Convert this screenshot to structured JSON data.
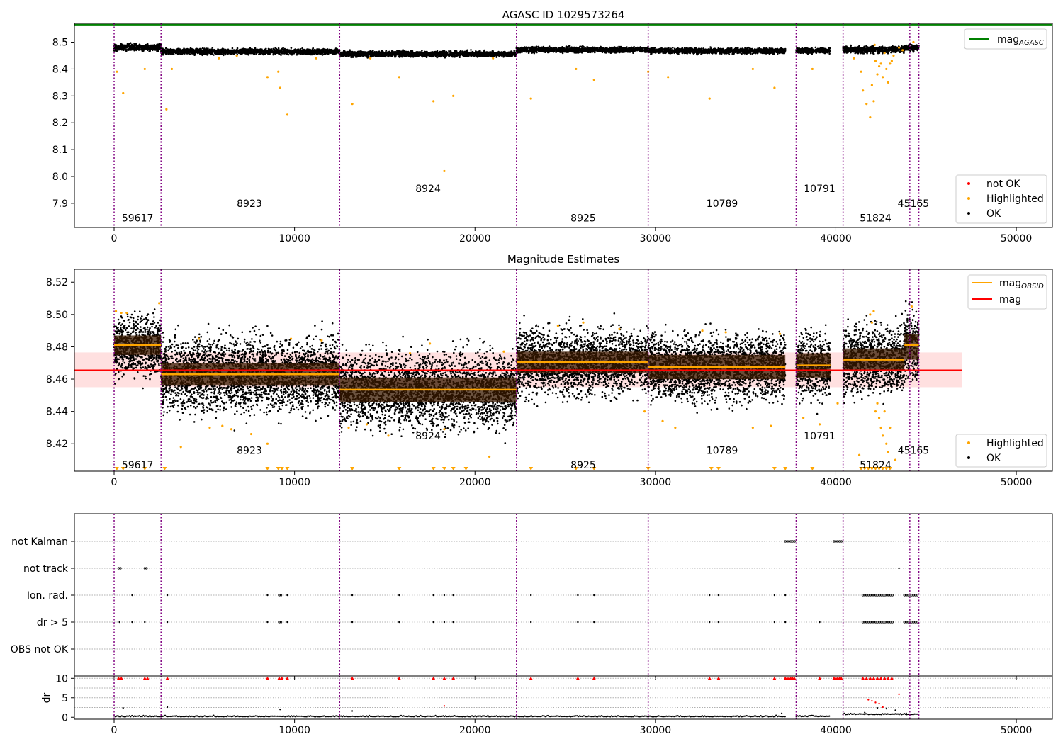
{
  "colors": {
    "ok": "#000000",
    "highlighted": "#ffa500",
    "not_ok": "#ff0000",
    "agasc_line": "#008000",
    "mag_line": "#ff0000",
    "mag_band": "#ffcccc",
    "obsid_line": "#ffa500",
    "obs_boundary": "#800080",
    "band_fill": "#3a1a00"
  },
  "chart_data": [
    {
      "type": "scatter",
      "title": "AGASC ID 1029573264",
      "xlim": [
        -2200,
        52000
      ],
      "ylim": [
        7.81,
        8.57
      ],
      "x_ticks": [
        0,
        10000,
        20000,
        30000,
        40000,
        50000
      ],
      "y_ticks": [
        7.9,
        8.0,
        8.1,
        8.2,
        8.3,
        8.4,
        8.5
      ],
      "mag_agasc": 8.565,
      "legend_top": [
        {
          "label_main": "mag",
          "label_sub": "AGASC",
          "color": "#008000"
        }
      ],
      "legend_bottom": [
        {
          "label": "not OK",
          "color": "#ff0000"
        },
        {
          "label": "Highlighted",
          "color": "#ffa500"
        },
        {
          "label": "OK",
          "color": "#000000"
        }
      ],
      "obs_boundaries": [
        0,
        2600,
        12500,
        22300,
        29600,
        37800,
        40400,
        44100,
        44600
      ],
      "obs_labels": [
        {
          "text": "59617",
          "x": 1300,
          "y": 7.845
        },
        {
          "text": "8923",
          "x": 7500,
          "y": 7.9
        },
        {
          "text": "8924",
          "x": 17400,
          "y": 7.955
        },
        {
          "text": "8925",
          "x": 26000,
          "y": 7.845
        },
        {
          "text": "10789",
          "x": 33700,
          "y": 7.9
        },
        {
          "text": "10791",
          "x": 39100,
          "y": 7.955
        },
        {
          "text": "51824",
          "x": 42200,
          "y": 7.845
        },
        {
          "text": "45165",
          "x": 44300,
          "y": 7.9
        }
      ],
      "ok_segments": [
        {
          "x0": 0,
          "x1": 2600,
          "center": 8.481,
          "spread": 0.012
        },
        {
          "x0": 2600,
          "x1": 12500,
          "center": 8.465,
          "spread": 0.01
        },
        {
          "x0": 12500,
          "x1": 22300,
          "center": 8.456,
          "spread": 0.01
        },
        {
          "x0": 22300,
          "x1": 29600,
          "center": 8.472,
          "spread": 0.01
        },
        {
          "x0": 29600,
          "x1": 37200,
          "center": 8.468,
          "spread": 0.01
        },
        {
          "x0": 37800,
          "x1": 39700,
          "center": 8.469,
          "spread": 0.01
        },
        {
          "x0": 40400,
          "x1": 43800,
          "center": 8.472,
          "spread": 0.012
        },
        {
          "x0": 43800,
          "x1": 44600,
          "center": 8.48,
          "spread": 0.012
        }
      ],
      "highlighted_points": [
        [
          150,
          8.39
        ],
        [
          500,
          8.31
        ],
        [
          1700,
          8.4
        ],
        [
          2900,
          8.25
        ],
        [
          3200,
          8.4
        ],
        [
          5800,
          8.44
        ],
        [
          8500,
          8.37
        ],
        [
          9100,
          8.39
        ],
        [
          9200,
          8.33
        ],
        [
          9600,
          8.23
        ],
        [
          11200,
          8.44
        ],
        [
          13200,
          8.27
        ],
        [
          14200,
          8.44
        ],
        [
          15800,
          8.37
        ],
        [
          17700,
          8.28
        ],
        [
          18300,
          8.02
        ],
        [
          18800,
          8.3
        ],
        [
          21000,
          8.44
        ],
        [
          23100,
          8.29
        ],
        [
          25600,
          8.4
        ],
        [
          26600,
          8.36
        ],
        [
          29600,
          8.39
        ],
        [
          30700,
          8.37
        ],
        [
          33000,
          8.29
        ],
        [
          35400,
          8.4
        ],
        [
          36600,
          8.33
        ],
        [
          38700,
          8.4
        ],
        [
          41000,
          8.44
        ],
        [
          41400,
          8.39
        ],
        [
          41500,
          8.32
        ],
        [
          41700,
          8.27
        ],
        [
          41900,
          8.22
        ],
        [
          42000,
          8.34
        ],
        [
          42100,
          8.28
        ],
        [
          42200,
          8.43
        ],
        [
          42300,
          8.38
        ],
        [
          42400,
          8.41
        ],
        [
          42500,
          8.42
        ],
        [
          42600,
          8.37
        ],
        [
          42700,
          8.46
        ],
        [
          42800,
          8.4
        ],
        [
          42900,
          8.35
        ],
        [
          43000,
          8.42
        ],
        [
          43100,
          8.43
        ],
        [
          43200,
          8.45
        ],
        [
          42150,
          8.49
        ],
        [
          43500,
          8.48
        ],
        [
          43700,
          8.47
        ],
        [
          44300,
          8.5
        ],
        [
          6800,
          8.45
        ]
      ]
    },
    {
      "type": "scatter",
      "title": "Magnitude Estimates",
      "xlim": [
        -2200,
        52000
      ],
      "ylim": [
        8.403,
        8.528
      ],
      "x_ticks": [
        0,
        10000,
        20000,
        30000,
        40000,
        50000
      ],
      "y_ticks": [
        8.42,
        8.44,
        8.46,
        8.48,
        8.5,
        8.52
      ],
      "mag": 8.4655,
      "mag_band": [
        8.455,
        8.4765
      ],
      "mag_x_range": [
        -2200,
        47000
      ],
      "legend_top": [
        {
          "label_main": "mag",
          "label_sub": "OBSID",
          "color": "#ffa500"
        },
        {
          "label_main": "mag",
          "label_sub": "",
          "color": "#ff0000"
        }
      ],
      "legend_bottom": [
        {
          "label": "Highlighted",
          "color": "#ffa500"
        },
        {
          "label": "OK",
          "color": "#000000"
        }
      ],
      "obs_boundaries": [
        0,
        2600,
        12500,
        22300,
        29600,
        37800,
        40400,
        44100,
        44600
      ],
      "obs_labels": [
        {
          "text": "59617",
          "x": 1300,
          "y": 8.407
        },
        {
          "text": "8923",
          "x": 7500,
          "y": 8.416
        },
        {
          "text": "8924",
          "x": 17400,
          "y": 8.425
        },
        {
          "text": "8925",
          "x": 26000,
          "y": 8.407
        },
        {
          "text": "10789",
          "x": 33700,
          "y": 8.416
        },
        {
          "text": "10791",
          "x": 39100,
          "y": 8.425
        },
        {
          "text": "51824",
          "x": 42200,
          "y": 8.407
        },
        {
          "text": "45165",
          "x": 44300,
          "y": 8.416
        }
      ],
      "obsid_segments": [
        {
          "x0": 0,
          "x1": 2600,
          "mag": 8.481,
          "lo": 8.475,
          "hi": 8.487,
          "spread": 0.008
        },
        {
          "x0": 2600,
          "x1": 12500,
          "mag": 8.463,
          "lo": 8.456,
          "hi": 8.47,
          "spread": 0.01
        },
        {
          "x0": 12500,
          "x1": 22300,
          "mag": 8.4535,
          "lo": 8.446,
          "hi": 8.461,
          "spread": 0.01
        },
        {
          "x0": 22300,
          "x1": 29600,
          "mag": 8.4705,
          "lo": 8.464,
          "hi": 8.477,
          "spread": 0.009
        },
        {
          "x0": 29600,
          "x1": 37200,
          "mag": 8.4675,
          "lo": 8.46,
          "hi": 8.475,
          "spread": 0.009
        },
        {
          "x0": 37800,
          "x1": 39700,
          "mag": 8.4685,
          "lo": 8.461,
          "hi": 8.476,
          "spread": 0.009
        },
        {
          "x0": 40400,
          "x1": 43800,
          "mag": 8.472,
          "lo": 8.465,
          "hi": 8.479,
          "spread": 0.009
        },
        {
          "x0": 43800,
          "x1": 44600,
          "mag": 8.481,
          "lo": 8.472,
          "hi": 8.488,
          "spread": 0.009
        }
      ],
      "highlighted_points": [
        [
          100,
          8.502
        ],
        [
          400,
          8.501
        ],
        [
          700,
          8.501
        ],
        [
          2500,
          8.507
        ],
        [
          3700,
          8.418
        ],
        [
          4700,
          8.485
        ],
        [
          5300,
          8.43
        ],
        [
          6000,
          8.431
        ],
        [
          6500,
          8.429
        ],
        [
          7600,
          8.426
        ],
        [
          8500,
          8.42
        ],
        [
          9800,
          8.485
        ],
        [
          11500,
          8.484
        ],
        [
          13000,
          8.43
        ],
        [
          14000,
          8.432
        ],
        [
          15200,
          8.425
        ],
        [
          16400,
          8.476
        ],
        [
          17500,
          8.482
        ],
        [
          18300,
          8.429
        ],
        [
          20800,
          8.412
        ],
        [
          21600,
          8.477
        ],
        [
          24600,
          8.493
        ],
        [
          26000,
          8.495
        ],
        [
          28000,
          8.491
        ],
        [
          29400,
          8.44
        ],
        [
          30400,
          8.434
        ],
        [
          31100,
          8.43
        ],
        [
          32600,
          8.49
        ],
        [
          33900,
          8.489
        ],
        [
          35400,
          8.43
        ],
        [
          36400,
          8.431
        ],
        [
          36900,
          8.488
        ],
        [
          38200,
          8.436
        ],
        [
          39100,
          8.432
        ],
        [
          40100,
          8.445
        ],
        [
          41300,
          8.413
        ],
        [
          41900,
          8.5
        ],
        [
          42000,
          8.495
        ],
        [
          42100,
          8.502
        ],
        [
          42200,
          8.44
        ],
        [
          42300,
          8.445
        ],
        [
          42400,
          8.436
        ],
        [
          42500,
          8.43
        ],
        [
          42600,
          8.425
        ],
        [
          42700,
          8.44
        ],
        [
          42800,
          8.42
        ],
        [
          42900,
          8.415
        ],
        [
          43000,
          8.43
        ],
        [
          43300,
          8.41
        ],
        [
          44200,
          8.505
        ]
      ],
      "clipped_markers_x": [
        150,
        500,
        1700,
        2800,
        8500,
        9100,
        9300,
        9600,
        13200,
        15800,
        17700,
        18300,
        18800,
        19500,
        23100,
        25600,
        26600,
        29600,
        33100,
        33500,
        36600,
        37200,
        38700,
        41400,
        41600,
        41800,
        42000,
        42200,
        42400,
        42600,
        42800,
        43000
      ]
    },
    {
      "type": "scatter",
      "title": "",
      "xlim": [
        -2200,
        52000
      ],
      "categories": [
        "not Kalman",
        "not track",
        "Ion. rad.",
        "dr > 5",
        "OBS not OK"
      ],
      "x_ticks": [
        0,
        10000,
        20000,
        30000,
        40000,
        50000
      ],
      "obs_boundaries": [
        0,
        2600,
        12500,
        22300,
        29600,
        37800,
        40400,
        44100,
        44600
      ],
      "flags": {
        "not Kalman": [
          [
            37200,
            37800
          ],
          [
            39900,
            40400
          ]
        ],
        "not track": [
          [
            250,
            450
          ],
          [
            1700,
            1850
          ],
          [
            43500,
            43550
          ]
        ],
        "Ion. rad.": [
          [
            1000,
            1000
          ],
          [
            2950,
            2950
          ],
          [
            8500,
            8500
          ],
          [
            9150,
            9350
          ],
          [
            9600,
            9600
          ],
          [
            13200,
            13200
          ],
          [
            15800,
            15800
          ],
          [
            17700,
            17700
          ],
          [
            18300,
            18300
          ],
          [
            18800,
            18800
          ],
          [
            23100,
            23100
          ],
          [
            25700,
            25700
          ],
          [
            26600,
            26600
          ],
          [
            33000,
            33000
          ],
          [
            33500,
            33500
          ],
          [
            36600,
            36600
          ],
          [
            37200,
            37200
          ],
          [
            41500,
            43200
          ],
          [
            43800,
            44600
          ]
        ],
        "dr > 5": [
          [
            300,
            300
          ],
          [
            1000,
            1000
          ],
          [
            1700,
            1700
          ],
          [
            2950,
            2950
          ],
          [
            8500,
            8500
          ],
          [
            9150,
            9350
          ],
          [
            9600,
            9600
          ],
          [
            13200,
            13200
          ],
          [
            15800,
            15800
          ],
          [
            17700,
            17700
          ],
          [
            18300,
            18300
          ],
          [
            18800,
            18800
          ],
          [
            23100,
            23100
          ],
          [
            25700,
            25700
          ],
          [
            26600,
            26600
          ],
          [
            33000,
            33000
          ],
          [
            33500,
            33500
          ],
          [
            36600,
            36600
          ],
          [
            37200,
            37200
          ],
          [
            39100,
            39100
          ],
          [
            41500,
            43200
          ],
          [
            43800,
            44600
          ]
        ],
        "OBS not OK": []
      }
    },
    {
      "type": "scatter",
      "title": "",
      "ylabel": "dr",
      "xlim": [
        -2200,
        52000
      ],
      "ylim": [
        -0.5,
        10.6
      ],
      "x_ticks": [
        0,
        10000,
        20000,
        30000,
        40000,
        50000
      ],
      "y_ticks": [
        0,
        5,
        10
      ],
      "obs_boundaries": [
        0,
        2600,
        12500,
        22300,
        29600,
        37800,
        40400,
        44100,
        44600
      ],
      "capped_value": 10,
      "capped_x": [
        250,
        400,
        1700,
        1850,
        2950,
        8500,
        9150,
        9300,
        9600,
        13200,
        15800,
        17700,
        18300,
        18800,
        23100,
        25700,
        26600,
        33000,
        33500,
        36600,
        37200,
        37300,
        37400,
        37500,
        37600,
        37700,
        39100,
        39900,
        40000,
        40100,
        40200,
        40300,
        41500,
        41700,
        41900,
        42100,
        42300,
        42500,
        42700,
        42900,
        43100
      ],
      "red_points": [
        [
          41800,
          4.5
        ],
        [
          42000,
          4.2
        ],
        [
          42200,
          3.8
        ],
        [
          42400,
          3.5
        ],
        [
          43500,
          5.9
        ],
        [
          18300,
          2.9
        ],
        [
          42600,
          2.6
        ]
      ],
      "black_points": [
        [
          500,
          2.4
        ],
        [
          2950,
          2.6
        ],
        [
          9200,
          2.0
        ],
        [
          13200,
          1.6
        ],
        [
          37000,
          1.0
        ],
        [
          42300,
          2.4
        ],
        [
          42800,
          2.2
        ],
        [
          43300,
          1.8
        ],
        [
          41600,
          1.2
        ],
        [
          43900,
          1.0
        ]
      ],
      "baseline_segments": [
        {
          "x0": 0,
          "x1": 37200,
          "level": 0.15
        },
        {
          "x0": 37800,
          "x1": 39700,
          "level": 0.2
        },
        {
          "x0": 40400,
          "x1": 44600,
          "level": 0.7
        }
      ]
    }
  ]
}
